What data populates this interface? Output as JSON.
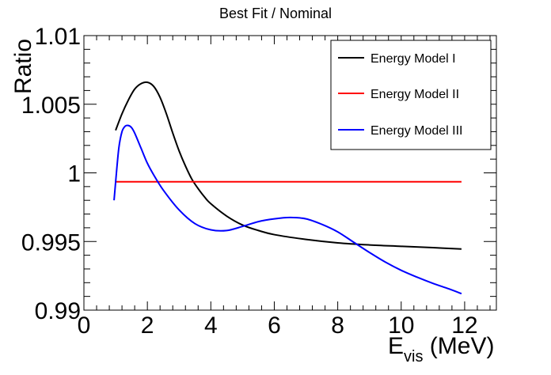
{
  "chart_data": {
    "type": "line",
    "title": "Best Fit / Nominal",
    "xlabel_main": "E",
    "xlabel_sub": "vis",
    "xlabel_unit": " (MeV)",
    "ylabel": "Ratio",
    "xlim": [
      0,
      13
    ],
    "ylim": [
      0.99,
      1.01
    ],
    "x_major_ticks": [
      0,
      2,
      4,
      6,
      8,
      10,
      12
    ],
    "x_tick_labels": [
      "0",
      "2",
      "4",
      "6",
      "8",
      "10",
      "12"
    ],
    "y_major_ticks": [
      0.99,
      0.995,
      1.0,
      1.005,
      1.01
    ],
    "y_tick_labels": [
      "0.99",
      "0.995",
      "1",
      "1.005",
      "1.01"
    ],
    "legend_position": "top-right",
    "series": [
      {
        "name": "Energy Model I",
        "color": "#000000",
        "x": [
          1.0,
          1.2,
          1.4,
          1.6,
          1.8,
          2.0,
          2.2,
          2.4,
          2.6,
          2.8,
          3.0,
          3.2,
          3.4,
          3.6,
          3.8,
          4.0,
          4.5,
          5.0,
          5.5,
          6.0,
          7.0,
          8.0,
          9.0,
          10.0,
          11.0,
          11.9
        ],
        "values": [
          1.0031,
          1.0043,
          1.0053,
          1.0061,
          1.0065,
          1.0066,
          1.0063,
          1.0055,
          1.0043,
          1.0029,
          1.0016,
          1.0005,
          0.99955,
          0.99885,
          0.99825,
          0.99775,
          0.99685,
          0.9962,
          0.9958,
          0.9955,
          0.99515,
          0.9949,
          0.99475,
          0.99465,
          0.99455,
          0.99445
        ]
      },
      {
        "name": "Energy Model II",
        "color": "#ff0000",
        "x": [
          1.0,
          11.9
        ],
        "values": [
          0.99935,
          0.99935
        ]
      },
      {
        "name": "Energy Model III",
        "color": "#0000ff",
        "x": [
          0.95,
          1.0,
          1.1,
          1.2,
          1.3,
          1.4,
          1.5,
          1.6,
          1.8,
          2.0,
          2.2,
          2.5,
          3.0,
          3.5,
          4.0,
          4.5,
          5.0,
          5.5,
          6.0,
          6.5,
          7.0,
          7.5,
          8.0,
          8.5,
          9.0,
          9.5,
          10.0,
          10.5,
          11.0,
          11.5,
          11.9
        ],
        "values": [
          0.998,
          0.99935,
          1.0018,
          1.003,
          1.0034,
          1.00345,
          1.0033,
          1.0029,
          1.0018,
          1.0007,
          0.99985,
          0.99875,
          0.9973,
          0.9963,
          0.99585,
          0.9958,
          0.9961,
          0.99645,
          0.99665,
          0.99675,
          0.99665,
          0.99625,
          0.9957,
          0.99495,
          0.9942,
          0.9935,
          0.9929,
          0.9924,
          0.99195,
          0.99155,
          0.9912
        ]
      }
    ]
  }
}
